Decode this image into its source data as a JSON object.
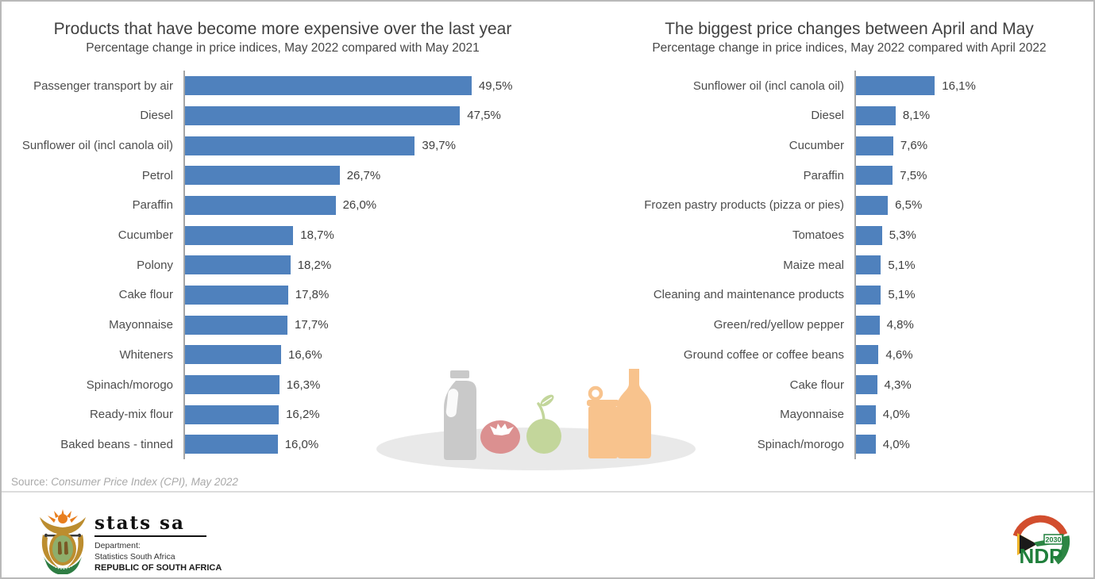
{
  "page": {
    "background": "#ffffff",
    "frame_border": "#b9b9b9",
    "axis_line_color": "#a6a6a6",
    "title_text_color": "#404040",
    "label_text_color": "#4d4d4d"
  },
  "chart_data": [
    {
      "type": "bar",
      "orientation": "horizontal",
      "title": "Products that have become more expensive over the last year",
      "subtitle": "Percentage change in price indices, May 2022 compared with May 2021",
      "categories": [
        "Passenger transport by air",
        "Diesel",
        "Sunflower oil (incl canola oil)",
        "Petrol",
        "Paraffin",
        "Cucumber",
        "Polony",
        "Cake flour",
        "Mayonnaise",
        "Whiteners",
        "Spinach/morogo",
        "Ready-mix flour",
        "Baked beans - tinned"
      ],
      "values": [
        49.5,
        47.5,
        39.7,
        26.7,
        26.0,
        18.7,
        18.2,
        17.8,
        17.7,
        16.6,
        16.3,
        16.2,
        16.0
      ],
      "value_labels": [
        "49,5%",
        "47,5%",
        "39,7%",
        "26,7%",
        "26,0%",
        "18,7%",
        "18,2%",
        "17,8%",
        "17,7%",
        "16,6%",
        "16,3%",
        "16,2%",
        "16,0%"
      ],
      "xlim": [
        0,
        55
      ],
      "grid": false,
      "legend": false,
      "bar_color": "#4F81BD",
      "value_format": "comma-decimal percent"
    },
    {
      "type": "bar",
      "orientation": "horizontal",
      "title": "The biggest price changes between April and May",
      "subtitle": "Percentage change in price indices, May 2022 compared with April 2022",
      "categories": [
        "Sunflower oil (incl canola oil)",
        "Diesel",
        "Cucumber",
        "Paraffin",
        "Frozen pastry products (pizza or pies)",
        "Tomatoes",
        "Maize meal",
        "Cleaning and maintenance products",
        "Green/red/yellow pepper",
        "Ground coffee or coffee beans",
        "Cake flour",
        "Mayonnaise",
        "Spinach/morogo"
      ],
      "values": [
        16.1,
        8.1,
        7.6,
        7.5,
        6.5,
        5.3,
        5.1,
        5.1,
        4.8,
        4.6,
        4.3,
        4.0,
        4.0
      ],
      "value_labels": [
        "16,1%",
        "8,1%",
        "7,6%",
        "7,5%",
        "6,5%",
        "5,3%",
        "5,1%",
        "5,1%",
        "4,8%",
        "4,6%",
        "4,3%",
        "4,0%",
        "4,0%"
      ],
      "xlim": [
        0,
        18
      ],
      "grid": false,
      "legend": false,
      "bar_color": "#4F81BD",
      "value_format": "comma-decimal percent"
    }
  ],
  "source": {
    "label": "Source: ",
    "text": "Consumer Price Index (CPI), May 2022"
  },
  "illustration": {
    "items": [
      "milk-jug-icon",
      "tomato-icon",
      "apple-icon",
      "tin-can-icon",
      "bottle-icon",
      "plate-ellipse"
    ],
    "colors": {
      "gray": "#c9c9c9",
      "plate": "#e9e9e9",
      "tomato": "#db9090",
      "apple_green": "#c3d69b",
      "orange": "#f8c38d"
    }
  },
  "footer": {
    "statssa": {
      "brand": "stats sa",
      "dept_line1": "Department:",
      "dept_line2": "Statistics South Africa",
      "dept_line3": "REPUBLIC OF SOUTH AFRICA",
      "emblem": "coat-of-arms-south-africa-icon"
    },
    "ndp": {
      "acronym": "NDP",
      "year": "2030",
      "emblem": "ndp-2030-logo-icon",
      "green": "#1F7F3B"
    }
  }
}
